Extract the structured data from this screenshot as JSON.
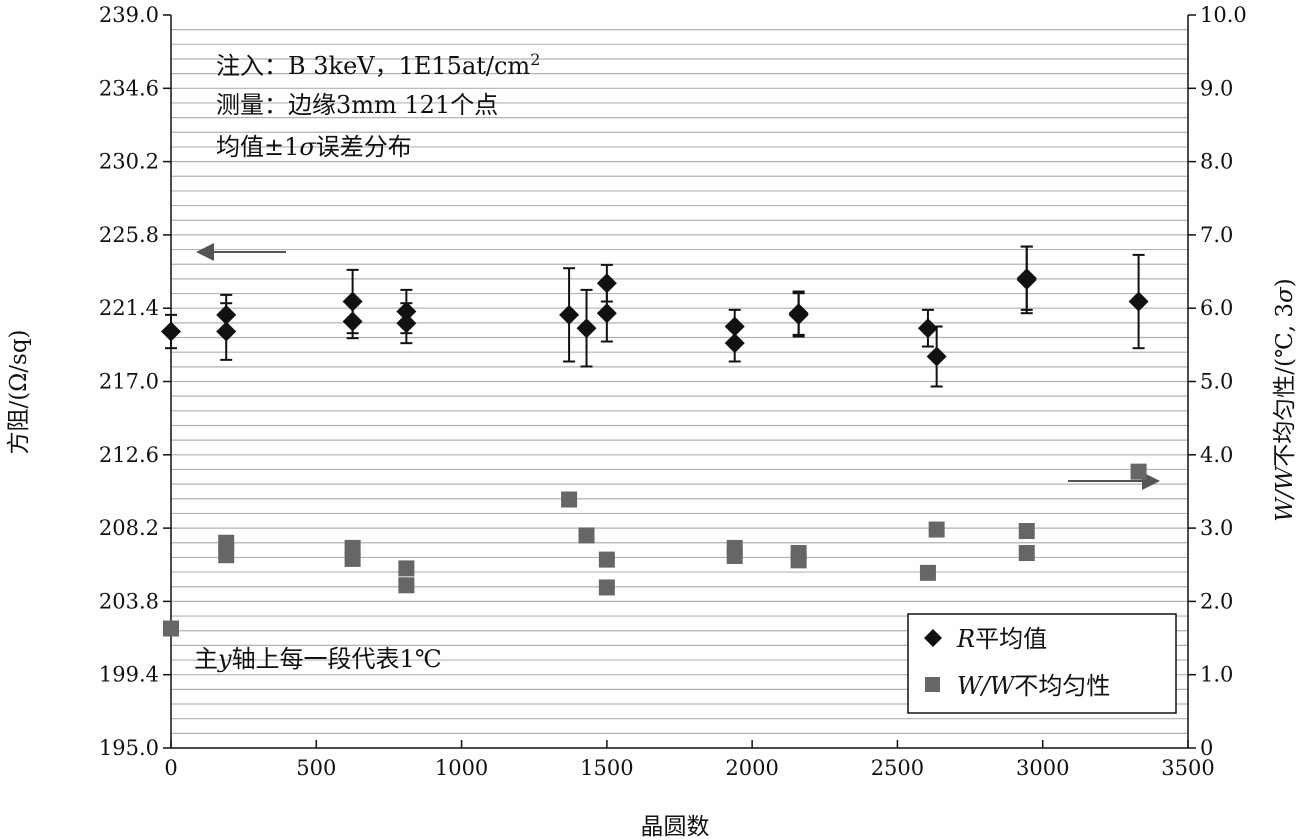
{
  "chart_data": {
    "type": "scatter",
    "xlabel": "晶圆数",
    "ylabel_left": "方阻/(Ω/sq)",
    "ylabel_right": "W/W不均匀性/(℃, 3σ)",
    "xlim": [
      0,
      3500
    ],
    "ylim_left": [
      195.0,
      239.0
    ],
    "ylim_right": [
      0,
      10.0
    ],
    "x_ticks": [
      0,
      500,
      1000,
      1500,
      2000,
      2500,
      3000,
      3500
    ],
    "y_left_ticks": [
      "195.0",
      "199.4",
      "203.8",
      "208.2",
      "212.6",
      "217.0",
      "221.4",
      "225.8",
      "230.2",
      "234.6",
      "239.0"
    ],
    "y_right_ticks": [
      "0",
      "1.0",
      "2.0",
      "3.0",
      "4.0",
      "5.0",
      "6.0",
      "7.0",
      "8.0",
      "9.0",
      "10.0"
    ],
    "grid": "horizontal",
    "annotations": {
      "line1_prefix": "注入：B 3keV，1E15at/cm",
      "line1_sup": "2",
      "line2": "测量：边缘3mm 121个点",
      "line3_a": "均值±1",
      "line3_sigma": "σ",
      "line3_b": "误差分布",
      "note_a": "主",
      "note_y": "y",
      "note_b": "轴上每一段代表1℃"
    },
    "legend_position": "bottom-right",
    "series": [
      {
        "name": "R平均值",
        "legend_italic": "R",
        "legend_rest": "平均值",
        "axis": "left",
        "marker": "diamond",
        "color": "#111111",
        "points": [
          {
            "x": 0,
            "y": 220.0,
            "err": 1.0
          },
          {
            "x": 190,
            "y": 221.0,
            "err": 1.2
          },
          {
            "x": 190,
            "y": 220.0,
            "err": 1.7
          },
          {
            "x": 625,
            "y": 221.8,
            "err": 1.9
          },
          {
            "x": 625,
            "y": 220.6,
            "err": 1.0
          },
          {
            "x": 810,
            "y": 221.2,
            "err": 1.3
          },
          {
            "x": 810,
            "y": 220.5,
            "err": 1.2
          },
          {
            "x": 1370,
            "y": 221.0,
            "err": 2.8
          },
          {
            "x": 1430,
            "y": 220.2,
            "err": 2.3
          },
          {
            "x": 1500,
            "y": 222.9,
            "err": 1.1
          },
          {
            "x": 1500,
            "y": 221.1,
            "err": 1.7
          },
          {
            "x": 1940,
            "y": 220.3,
            "err": 1.0
          },
          {
            "x": 1940,
            "y": 219.3,
            "err": 1.1
          },
          {
            "x": 2160,
            "y": 221.1,
            "err": 1.3
          },
          {
            "x": 2160,
            "y": 221.0,
            "err": 1.3
          },
          {
            "x": 2605,
            "y": 220.2,
            "err": 1.1
          },
          {
            "x": 2635,
            "y": 218.5,
            "err": 1.8
          },
          {
            "x": 2945,
            "y": 223.2,
            "err": 1.9
          },
          {
            "x": 2945,
            "y": 223.1,
            "err": 2.0
          },
          {
            "x": 3330,
            "y": 221.8,
            "err": 2.8
          }
        ]
      },
      {
        "name": "W/W不均匀性",
        "legend_italic": "W/W",
        "legend_rest": "不均匀性",
        "axis": "right",
        "marker": "square",
        "color": "#666666",
        "points": [
          {
            "x": 0,
            "y": 1.63
          },
          {
            "x": 190,
            "y": 2.8
          },
          {
            "x": 190,
            "y": 2.63
          },
          {
            "x": 625,
            "y": 2.73
          },
          {
            "x": 625,
            "y": 2.58
          },
          {
            "x": 810,
            "y": 2.45
          },
          {
            "x": 810,
            "y": 2.22
          },
          {
            "x": 1370,
            "y": 3.39
          },
          {
            "x": 1430,
            "y": 2.9
          },
          {
            "x": 1500,
            "y": 2.57
          },
          {
            "x": 1500,
            "y": 2.19
          },
          {
            "x": 1940,
            "y": 2.73
          },
          {
            "x": 1940,
            "y": 2.62
          },
          {
            "x": 2160,
            "y": 2.66
          },
          {
            "x": 2160,
            "y": 2.56
          },
          {
            "x": 2605,
            "y": 2.39
          },
          {
            "x": 2635,
            "y": 2.98
          },
          {
            "x": 2945,
            "y": 2.96
          },
          {
            "x": 2945,
            "y": 2.66
          },
          {
            "x": 3330,
            "y": 3.77
          }
        ]
      }
    ]
  }
}
